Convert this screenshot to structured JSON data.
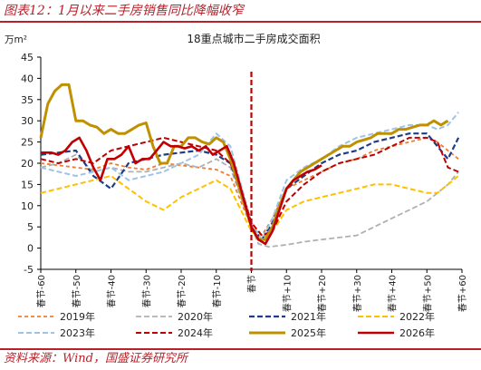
{
  "header": {
    "title": "图表12：1月以来二手房销售同比降幅收窄"
  },
  "footer": {
    "source": "资料来源：Wind，国盛证券研究所"
  },
  "chart_data": {
    "type": "line",
    "title": "18重点城市二手房成交面积",
    "ylabel": "万m²",
    "xlabel": "",
    "ylim": [
      -5,
      45
    ],
    "yticks": [
      -5,
      0,
      5,
      10,
      15,
      20,
      25,
      30,
      35,
      40,
      45
    ],
    "xlim": [
      -60,
      60
    ],
    "xticks": [
      {
        "x": -60,
        "label": "春节-60"
      },
      {
        "x": -50,
        "label": "春节-50"
      },
      {
        "x": -40,
        "label": "春节-40"
      },
      {
        "x": -30,
        "label": "春节-30"
      },
      {
        "x": -20,
        "label": "春节-20"
      },
      {
        "x": -10,
        "label": "春节-10"
      },
      {
        "x": 0,
        "label": "春节"
      },
      {
        "x": 10,
        "label": "春节+10"
      },
      {
        "x": 20,
        "label": "春节+20"
      },
      {
        "x": 30,
        "label": "春节+30"
      },
      {
        "x": 40,
        "label": "春节+40"
      },
      {
        "x": 50,
        "label": "春节+50"
      },
      {
        "x": 60,
        "label": "春节+60"
      }
    ],
    "grid": false,
    "legend_position": "bottom",
    "series": [
      {
        "name": "2019年",
        "color": "#ed7d31",
        "style": "dash-short",
        "width": 1.8,
        "x": [
          -60,
          -55,
          -50,
          -45,
          -40,
          -35,
          -30,
          -25,
          -20,
          -15,
          -10,
          -6,
          -3,
          0,
          3,
          6,
          10,
          15,
          20,
          25,
          30,
          35,
          40,
          45,
          50,
          53,
          56,
          59
        ],
        "y": [
          20,
          19.5,
          19,
          18.5,
          20,
          19,
          18.5,
          20,
          19.5,
          19,
          18.5,
          17,
          11,
          5,
          3,
          7,
          14,
          16,
          18,
          20,
          21,
          23,
          24,
          25,
          26,
          25,
          23,
          21
        ]
      },
      {
        "name": "2020年",
        "color": "#b0b0b0",
        "style": "dash-long",
        "width": 1.8,
        "x": [
          -60,
          -55,
          -50,
          -45,
          -40,
          -35,
          -30,
          -25,
          -20,
          -15,
          -10,
          -6,
          -3,
          0,
          2,
          5,
          10,
          15,
          20,
          25,
          30,
          35,
          40,
          45,
          50,
          53,
          56,
          59
        ],
        "y": [
          19,
          20,
          22,
          18,
          19,
          18,
          18,
          19,
          20,
          19,
          21,
          19,
          12,
          5,
          1,
          0.3,
          0.8,
          1.5,
          2,
          2.5,
          3,
          5,
          7,
          9,
          11,
          13,
          15,
          18
        ]
      },
      {
        "name": "2021年",
        "color": "#1f3c88",
        "style": "dash-long",
        "width": 2.2,
        "x": [
          -60,
          -55,
          -50,
          -45,
          -40,
          -35,
          -30,
          -25,
          -20,
          -15,
          -10,
          -6,
          -3,
          0,
          3,
          6,
          10,
          15,
          20,
          25,
          30,
          35,
          40,
          45,
          50,
          53,
          56,
          59
        ],
        "y": [
          22,
          22.5,
          23,
          17,
          14,
          20,
          21,
          22,
          22.5,
          23,
          22,
          20,
          13,
          5,
          2,
          6,
          14,
          17,
          20,
          22,
          23,
          25,
          26,
          27,
          27,
          24,
          21,
          26
        ]
      },
      {
        "name": "2022年",
        "color": "#ffc000",
        "style": "dash-long",
        "width": 2.0,
        "x": [
          -60,
          -55,
          -50,
          -45,
          -40,
          -35,
          -30,
          -25,
          -20,
          -15,
          -10,
          -6,
          -3,
          0,
          3,
          6,
          10,
          15,
          20,
          25,
          30,
          35,
          40,
          45,
          50,
          53,
          56,
          59
        ],
        "y": [
          13,
          14,
          15,
          16,
          17,
          14,
          11,
          9,
          12,
          14,
          16,
          14,
          9,
          4,
          2,
          4,
          9,
          11,
          12,
          13,
          14,
          15,
          15,
          14,
          13,
          13,
          15,
          17
        ]
      },
      {
        "name": "2023年",
        "color": "#9dc3e6",
        "style": "dash-long",
        "width": 2.0,
        "x": [
          -60,
          -55,
          -50,
          -45,
          -40,
          -35,
          -30,
          -25,
          -20,
          -15,
          -10,
          -6,
          -3,
          0,
          3,
          6,
          10,
          15,
          20,
          25,
          30,
          35,
          40,
          45,
          50,
          53,
          56,
          59
        ],
        "y": [
          19,
          18,
          17,
          18,
          19,
          16,
          17,
          18,
          20,
          22,
          27,
          24,
          15,
          6,
          2,
          7,
          16,
          19,
          21,
          24,
          26,
          27,
          28,
          29,
          29,
          28,
          29,
          32
        ]
      },
      {
        "name": "2024年",
        "color": "#c00000",
        "style": "dash-long",
        "width": 2.0,
        "x": [
          -60,
          -55,
          -50,
          -45,
          -40,
          -35,
          -30,
          -25,
          -20,
          -15,
          -10,
          -6,
          -3,
          0,
          3,
          6,
          10,
          15,
          20,
          25,
          30,
          35,
          40,
          45,
          50,
          53,
          56,
          59
        ],
        "y": [
          21,
          20,
          21,
          20,
          23,
          24,
          25,
          26,
          25,
          24,
          23,
          20,
          14,
          6,
          3,
          4,
          11,
          15,
          18,
          20,
          21,
          22,
          24,
          26,
          26,
          25,
          19,
          18
        ]
      },
      {
        "name": "2025年",
        "color": "#bf9000",
        "style": "solid",
        "width": 3.0,
        "x": [
          -60,
          -58,
          -56,
          -54,
          -52,
          -50,
          -48,
          -46,
          -44,
          -42,
          -40,
          -38,
          -36,
          -34,
          -32,
          -30,
          -28,
          -26,
          -24,
          -22,
          -20,
          -18,
          -16,
          -14,
          -12,
          -10,
          -8,
          -6,
          -3,
          0,
          2,
          4,
          6,
          8,
          10,
          12,
          14,
          16,
          18,
          20,
          22,
          24,
          26,
          28,
          30,
          32,
          34,
          36,
          38,
          40,
          42,
          44,
          46,
          48,
          50,
          52,
          54,
          56
        ],
        "y": [
          26,
          34,
          37,
          38.5,
          38.5,
          30,
          30,
          29,
          28.5,
          27,
          28,
          27,
          27,
          28,
          29,
          29.5,
          24,
          20,
          20,
          24,
          24,
          26,
          26,
          25,
          24.5,
          26,
          25,
          21,
          13,
          5,
          2,
          2,
          5,
          10,
          14,
          16,
          18,
          19,
          20,
          21,
          22,
          23,
          24,
          24,
          25,
          25.5,
          26,
          27,
          27,
          27,
          28,
          28,
          28.5,
          29,
          29,
          30,
          29,
          30
        ]
      },
      {
        "name": "2026年",
        "color": "#c00000",
        "style": "solid",
        "width": 2.6,
        "x": [
          -60,
          -57,
          -55,
          -53,
          -51,
          -49,
          -47,
          -45,
          -43,
          -41,
          -39,
          -37,
          -35,
          -33,
          -31,
          -29,
          -27,
          -25,
          -23,
          -21,
          -19,
          -17,
          -15,
          -13,
          -11,
          -9,
          -7,
          -5,
          -3,
          -1,
          0,
          2,
          4,
          6,
          8,
          10,
          12,
          14,
          16,
          18,
          20
        ],
        "y": [
          22.5,
          22.5,
          22,
          23,
          25,
          26,
          23,
          19,
          16,
          21,
          21,
          22,
          24,
          20,
          21,
          21,
          23,
          25,
          24,
          24,
          23.5,
          24,
          23,
          24,
          22,
          23,
          24,
          20,
          14,
          8,
          5,
          2,
          1,
          4,
          9,
          14,
          16,
          17,
          18,
          18.5,
          19.5
        ]
      }
    ],
    "annotations": [
      {
        "type": "vline",
        "x": 0,
        "color": "#c00000",
        "style": "dashed"
      }
    ]
  }
}
